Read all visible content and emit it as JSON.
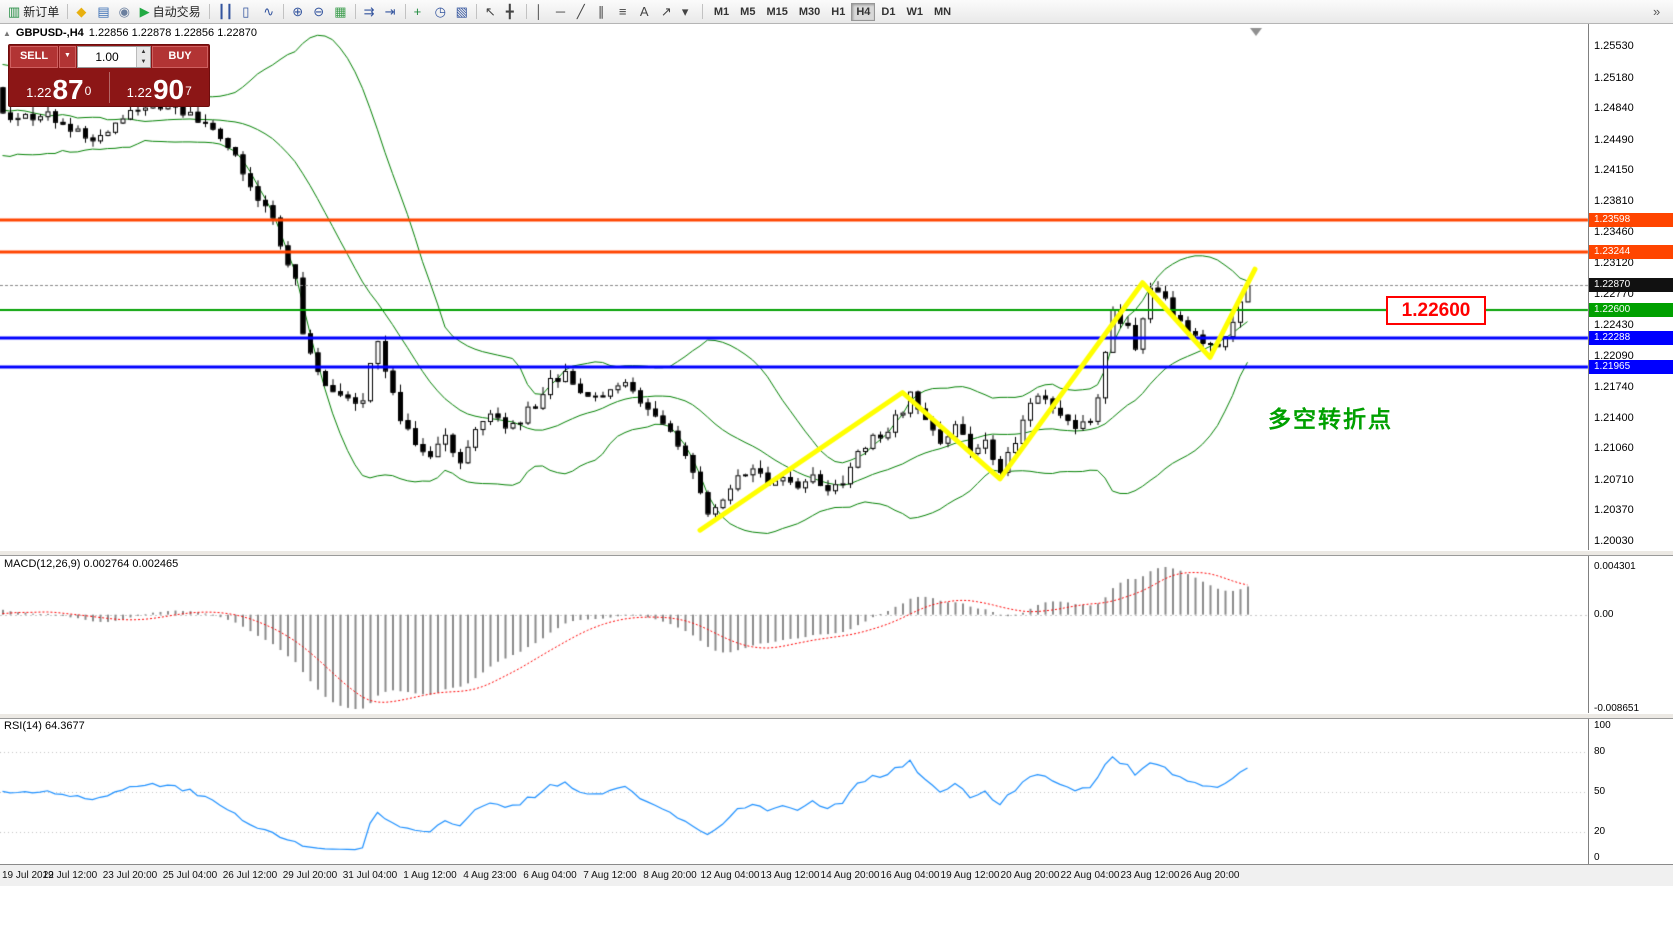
{
  "toolbar": {
    "items": [
      {
        "name": "new-order",
        "glyph": "▥",
        "color": "#1f8a3e",
        "label": "新订单"
      },
      {
        "name": "sep"
      },
      {
        "name": "metaeditor",
        "glyph": "◆",
        "color": "#e8b00f"
      },
      {
        "name": "data-window",
        "glyph": "▤",
        "color": "#3b6fb5"
      },
      {
        "name": "sound-alert",
        "glyph": "◉",
        "color": "#6b7f9e"
      },
      {
        "name": "autotrading",
        "glyph": "▶",
        "color": "#22aa44",
        "label": "自动交易"
      },
      {
        "name": "sep"
      },
      {
        "name": "chart-bars",
        "glyph": "┃┃",
        "color": "#33549e"
      },
      {
        "name": "chart-candles",
        "glyph": "▯",
        "color": "#33549e"
      },
      {
        "name": "chart-line",
        "glyph": "∿",
        "color": "#33549e"
      },
      {
        "name": "sep"
      },
      {
        "name": "zoom-in",
        "glyph": "⊕",
        "color": "#33549e"
      },
      {
        "name": "zoom-out",
        "glyph": "⊖",
        "color": "#33549e"
      },
      {
        "name": "tile-windows",
        "glyph": "▦",
        "color": "#3d9e4e"
      },
      {
        "name": "sep"
      },
      {
        "name": "auto-scroll",
        "glyph": "⇉",
        "color": "#33549e"
      },
      {
        "name": "chart-shift",
        "glyph": "⇥",
        "color": "#33549e"
      },
      {
        "name": "sep"
      },
      {
        "name": "indicators",
        "glyph": "+",
        "color": "#1f8a3e"
      },
      {
        "name": "periods",
        "glyph": "◷",
        "color": "#33549e"
      },
      {
        "name": "templates",
        "glyph": "▧",
        "color": "#33549e"
      },
      {
        "name": "sep"
      },
      {
        "name": "cursor",
        "glyph": "↖",
        "color": "#444444"
      },
      {
        "name": "crosshair",
        "glyph": "╋",
        "color": "#444444"
      },
      {
        "name": "sep"
      },
      {
        "name": "vertical-line",
        "glyph": "│",
        "color": "#444444"
      },
      {
        "name": "horizontal-line",
        "glyph": "─",
        "color": "#444444"
      },
      {
        "name": "trendline",
        "glyph": "╱",
        "color": "#444444"
      },
      {
        "name": "channel",
        "glyph": "∥",
        "color": "#444444"
      },
      {
        "name": "fibonacci",
        "glyph": "≡",
        "color": "#444444"
      },
      {
        "name": "text",
        "glyph": "A",
        "color": "#444444"
      },
      {
        "name": "arrows",
        "glyph": "↗",
        "color": "#444444"
      },
      {
        "name": "shapes",
        "glyph": "▾",
        "color": "#444444"
      },
      {
        "name": "sep"
      }
    ],
    "timeframes": [
      "M1",
      "M5",
      "M15",
      "M30",
      "H1",
      "H4",
      "D1",
      "W1",
      "MN"
    ],
    "active_timeframe": "H4",
    "overflow_glyph": "»"
  },
  "chart_header": {
    "collapse_glyph": "▲",
    "symbol_period": "GBPUSD-,H4",
    "ohlc": "1.22856 1.22878 1.22856 1.22870"
  },
  "trade_panel": {
    "sell_label": "SELL",
    "buy_label": "BUY",
    "lot_value": "1.00",
    "dropdown_glyph": "▼",
    "spin_up_glyph": "▲",
    "spin_down_glyph": "▼",
    "sell_price": {
      "base": "1.22",
      "big": "87",
      "sup": "0"
    },
    "buy_price": {
      "base": "1.22",
      "big": "90",
      "sup": "7"
    }
  },
  "macd_header": "MACD(12,26,9) 0.002764 0.002465",
  "rsi_header": "RSI(14) 64.3677",
  "callout": {
    "text": "1.22600",
    "color": "#ff0000"
  },
  "annotation": {
    "text": "多空转折点",
    "color": "#00a000"
  },
  "chart_data": {
    "type": "candlestick",
    "symbol": "GBPUSD-",
    "timeframe": "H4",
    "ohlc_display": {
      "open": "1.22856",
      "high": "1.22878",
      "low": "1.22856",
      "close": "1.22870"
    },
    "price_axis_ticks": [
      "1.25530",
      "1.25180",
      "1.24840",
      "1.24490",
      "1.24150",
      "1.23810",
      "1.23460",
      "1.23120",
      "1.22770",
      "1.22430",
      "1.22090",
      "1.21740",
      "1.21400",
      "1.21060",
      "1.20710",
      "1.20370",
      "1.20030"
    ],
    "time_axis_ticks": [
      "19 Jul 2019",
      "22 Jul 12:00",
      "23 Jul 20:00",
      "25 Jul 04:00",
      "26 Jul 12:00",
      "29 Jul 20:00",
      "31 Jul 04:00",
      "1 Aug 12:00",
      "4 Aug 23:00",
      "6 Aug 04:00",
      "7 Aug 12:00",
      "8 Aug 20:00",
      "12 Aug 04:00",
      "13 Aug 12:00",
      "14 Aug 20:00",
      "16 Aug 04:00",
      "19 Aug 12:00",
      "20 Aug 20:00",
      "22 Aug 04:00",
      "23 Aug 12:00",
      "26 Aug 20:00"
    ],
    "bars_per_tick": 8,
    "price_range": [
      1.2003,
      1.2553
    ],
    "close_waypoints": [
      [
        0,
        1.2475
      ],
      [
        5,
        1.2478
      ],
      [
        8,
        1.246
      ],
      [
        11,
        1.245
      ],
      [
        14,
        1.2468
      ],
      [
        17,
        1.2482
      ],
      [
        21,
        1.249
      ],
      [
        23,
        1.2482
      ],
      [
        27,
        1.2462
      ],
      [
        30,
        1.2428
      ],
      [
        33,
        1.2382
      ],
      [
        35,
        1.2364
      ],
      [
        36,
        1.233
      ],
      [
        38,
        1.2295
      ],
      [
        39,
        1.223
      ],
      [
        40,
        1.2207
      ],
      [
        42,
        1.2172
      ],
      [
        45,
        1.2161
      ],
      [
        47,
        1.2156
      ],
      [
        48,
        1.2198
      ],
      [
        49,
        1.2225
      ],
      [
        50,
        1.2192
      ],
      [
        52,
        1.2142
      ],
      [
        54,
        1.2112
      ],
      [
        56,
        1.2101
      ],
      [
        58,
        1.2117
      ],
      [
        60,
        1.2094
      ],
      [
        62,
        1.2128
      ],
      [
        64,
        1.2145
      ],
      [
        66,
        1.2128
      ],
      [
        68,
        1.2139
      ],
      [
        70,
        1.2155
      ],
      [
        72,
        1.2183
      ],
      [
        74,
        1.2189
      ],
      [
        76,
        1.2166
      ],
      [
        78,
        1.2161
      ],
      [
        80,
        1.2172
      ],
      [
        82,
        1.2177
      ],
      [
        84,
        1.2161
      ],
      [
        86,
        1.2139
      ],
      [
        88,
        1.2128
      ],
      [
        90,
        1.2094
      ],
      [
        92,
        1.2061
      ],
      [
        93,
        1.203
      ],
      [
        94,
        1.2046
      ],
      [
        95,
        1.205
      ],
      [
        97,
        1.2072
      ],
      [
        99,
        1.2083
      ],
      [
        101,
        1.2066
      ],
      [
        103,
        1.2072
      ],
      [
        105,
        1.2061
      ],
      [
        107,
        1.2072
      ],
      [
        109,
        1.2055
      ],
      [
        111,
        1.2072
      ],
      [
        113,
        1.2106
      ],
      [
        115,
        1.2117
      ],
      [
        117,
        1.2128
      ],
      [
        119,
        1.215
      ],
      [
        120,
        1.2166
      ],
      [
        122,
        1.2139
      ],
      [
        124,
        1.2117
      ],
      [
        126,
        1.2128
      ],
      [
        128,
        1.2106
      ],
      [
        130,
        1.2111
      ],
      [
        132,
        1.2083
      ],
      [
        134,
        1.2117
      ],
      [
        136,
        1.2161
      ],
      [
        138,
        1.2166
      ],
      [
        140,
        1.2139
      ],
      [
        142,
        1.2128
      ],
      [
        144,
        1.2139
      ],
      [
        145,
        1.2161
      ],
      [
        147,
        1.2261
      ],
      [
        149,
        1.2238
      ],
      [
        150,
        1.2222
      ],
      [
        152,
        1.2281
      ],
      [
        154,
        1.2271
      ],
      [
        155,
        1.2255
      ],
      [
        157,
        1.2238
      ],
      [
        159,
        1.2222
      ],
      [
        161,
        1.2216
      ],
      [
        163,
        1.225
      ],
      [
        164,
        1.2271
      ],
      [
        165,
        1.2287
      ]
    ],
    "current_price": 1.2287,
    "bollinger": {
      "period": 20,
      "deviation": 2,
      "color": "#008000"
    },
    "hlines": [
      {
        "label": "1.23598",
        "value": 1.23598,
        "color": "#ff4500",
        "width": 3
      },
      {
        "label": "1.23244",
        "value": 1.23244,
        "color": "#ff4500",
        "width": 3
      },
      {
        "label": "1.22600",
        "value": 1.226,
        "color": "#00a000",
        "width": 2
      },
      {
        "label": "1.22288",
        "value": 1.22288,
        "color": "#0000ff",
        "width": 3
      },
      {
        "label": "1.21965",
        "value": 1.21965,
        "color": "#0000ff",
        "width": 3
      }
    ],
    "current_tag": {
      "label": "1.22870",
      "value": 1.2287,
      "color": "#111111"
    },
    "zigzag": {
      "color": "#ffff00",
      "width": 5,
      "points": [
        [
          92,
          1.2015
        ],
        [
          119,
          1.2168
        ],
        [
          132,
          1.2072
        ],
        [
          151,
          1.229
        ],
        [
          160,
          1.2207
        ],
        [
          166,
          1.2305
        ]
      ]
    },
    "macd": {
      "fast": 12,
      "slow": 26,
      "signal": 9,
      "current_macd": 0.002764,
      "current_signal": 0.002465,
      "axis_labels": {
        "max": "0.004301",
        "zero": "0.00",
        "min": "-0.008651"
      },
      "histogram_color": "#8c8c8c",
      "signal_color": "#ff0000"
    },
    "rsi": {
      "period": 14,
      "current": 64.3677,
      "color": "#1e90ff",
      "range": [
        0,
        100
      ],
      "levels": [
        80,
        50,
        20
      ],
      "axis_labels": [
        "100",
        "80",
        "50",
        "20",
        "0"
      ]
    }
  }
}
